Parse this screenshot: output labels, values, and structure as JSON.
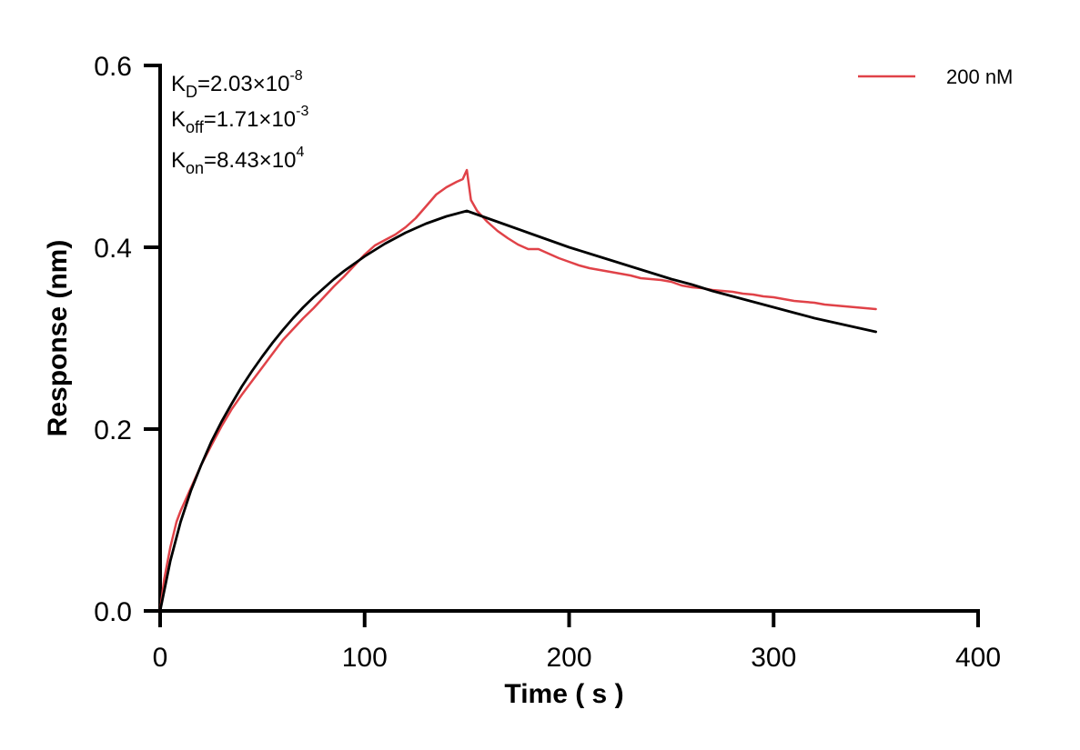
{
  "chart_data": {
    "type": "line",
    "title": "",
    "xlabel": "Time ( s )",
    "ylabel": "Response (nm)",
    "xlim": [
      0,
      400
    ],
    "ylim": [
      0,
      0.6
    ],
    "x_ticks": [
      0,
      100,
      200,
      300,
      400
    ],
    "y_ticks": [
      0.0,
      0.2,
      0.4,
      0.6
    ],
    "x_tick_labels": [
      "0",
      "100",
      "200",
      "300",
      "400"
    ],
    "y_tick_labels": [
      "0.0",
      "0.2",
      "0.4",
      "0.6"
    ],
    "grid": false,
    "legend_position": "top-right",
    "annotations": [
      {
        "main": "K",
        "sub": "D",
        "value": "=2.03×10",
        "sup": "-8"
      },
      {
        "main": "K",
        "sub": "off",
        "value": "=1.71×10",
        "sup": "-3"
      },
      {
        "main": "K",
        "sub": "on",
        "value": "=8.43×10",
        "sup": "4"
      }
    ],
    "series": [
      {
        "name": "200 nM",
        "color": "#e04248",
        "role": "measured",
        "x": [
          0,
          2,
          5,
          8,
          10,
          15,
          20,
          25,
          30,
          35,
          40,
          45,
          50,
          55,
          60,
          65,
          70,
          75,
          80,
          85,
          90,
          95,
          100,
          105,
          110,
          115,
          120,
          125,
          130,
          135,
          140,
          145,
          148,
          150,
          152,
          155,
          160,
          165,
          170,
          175,
          180,
          185,
          190,
          195,
          200,
          205,
          210,
          215,
          220,
          225,
          230,
          235,
          240,
          245,
          250,
          255,
          260,
          265,
          270,
          275,
          280,
          285,
          290,
          295,
          300,
          305,
          310,
          315,
          320,
          325,
          330,
          335,
          340,
          345,
          350
        ],
        "y": [
          0.0,
          0.035,
          0.07,
          0.098,
          0.11,
          0.135,
          0.16,
          0.182,
          0.203,
          0.222,
          0.238,
          0.253,
          0.268,
          0.283,
          0.298,
          0.31,
          0.322,
          0.333,
          0.345,
          0.357,
          0.368,
          0.38,
          0.392,
          0.402,
          0.408,
          0.414,
          0.422,
          0.432,
          0.445,
          0.458,
          0.466,
          0.472,
          0.475,
          0.485,
          0.452,
          0.44,
          0.428,
          0.418,
          0.41,
          0.403,
          0.398,
          0.398,
          0.393,
          0.388,
          0.384,
          0.38,
          0.377,
          0.375,
          0.373,
          0.371,
          0.369,
          0.366,
          0.365,
          0.364,
          0.362,
          0.358,
          0.356,
          0.355,
          0.353,
          0.352,
          0.351,
          0.349,
          0.348,
          0.346,
          0.345,
          0.343,
          0.341,
          0.34,
          0.339,
          0.337,
          0.336,
          0.335,
          0.334,
          0.333,
          0.332
        ]
      },
      {
        "color": "#000000",
        "role": "fit",
        "x": [
          0,
          5,
          10,
          15,
          20,
          25,
          30,
          35,
          40,
          45,
          50,
          55,
          60,
          65,
          70,
          75,
          80,
          85,
          90,
          95,
          100,
          105,
          110,
          115,
          120,
          125,
          130,
          135,
          140,
          145,
          150,
          160,
          170,
          180,
          190,
          200,
          210,
          220,
          230,
          240,
          250,
          260,
          270,
          280,
          290,
          300,
          310,
          320,
          330,
          340,
          350
        ],
        "y": [
          0.0,
          0.055,
          0.098,
          0.132,
          0.16,
          0.186,
          0.208,
          0.228,
          0.247,
          0.264,
          0.28,
          0.295,
          0.309,
          0.322,
          0.334,
          0.345,
          0.355,
          0.365,
          0.374,
          0.382,
          0.39,
          0.397,
          0.404,
          0.41,
          0.416,
          0.421,
          0.426,
          0.43,
          0.434,
          0.437,
          0.44,
          0.432,
          0.424,
          0.416,
          0.408,
          0.4,
          0.393,
          0.386,
          0.379,
          0.372,
          0.365,
          0.359,
          0.352,
          0.346,
          0.34,
          0.334,
          0.328,
          0.322,
          0.317,
          0.312,
          0.307
        ]
      }
    ]
  }
}
